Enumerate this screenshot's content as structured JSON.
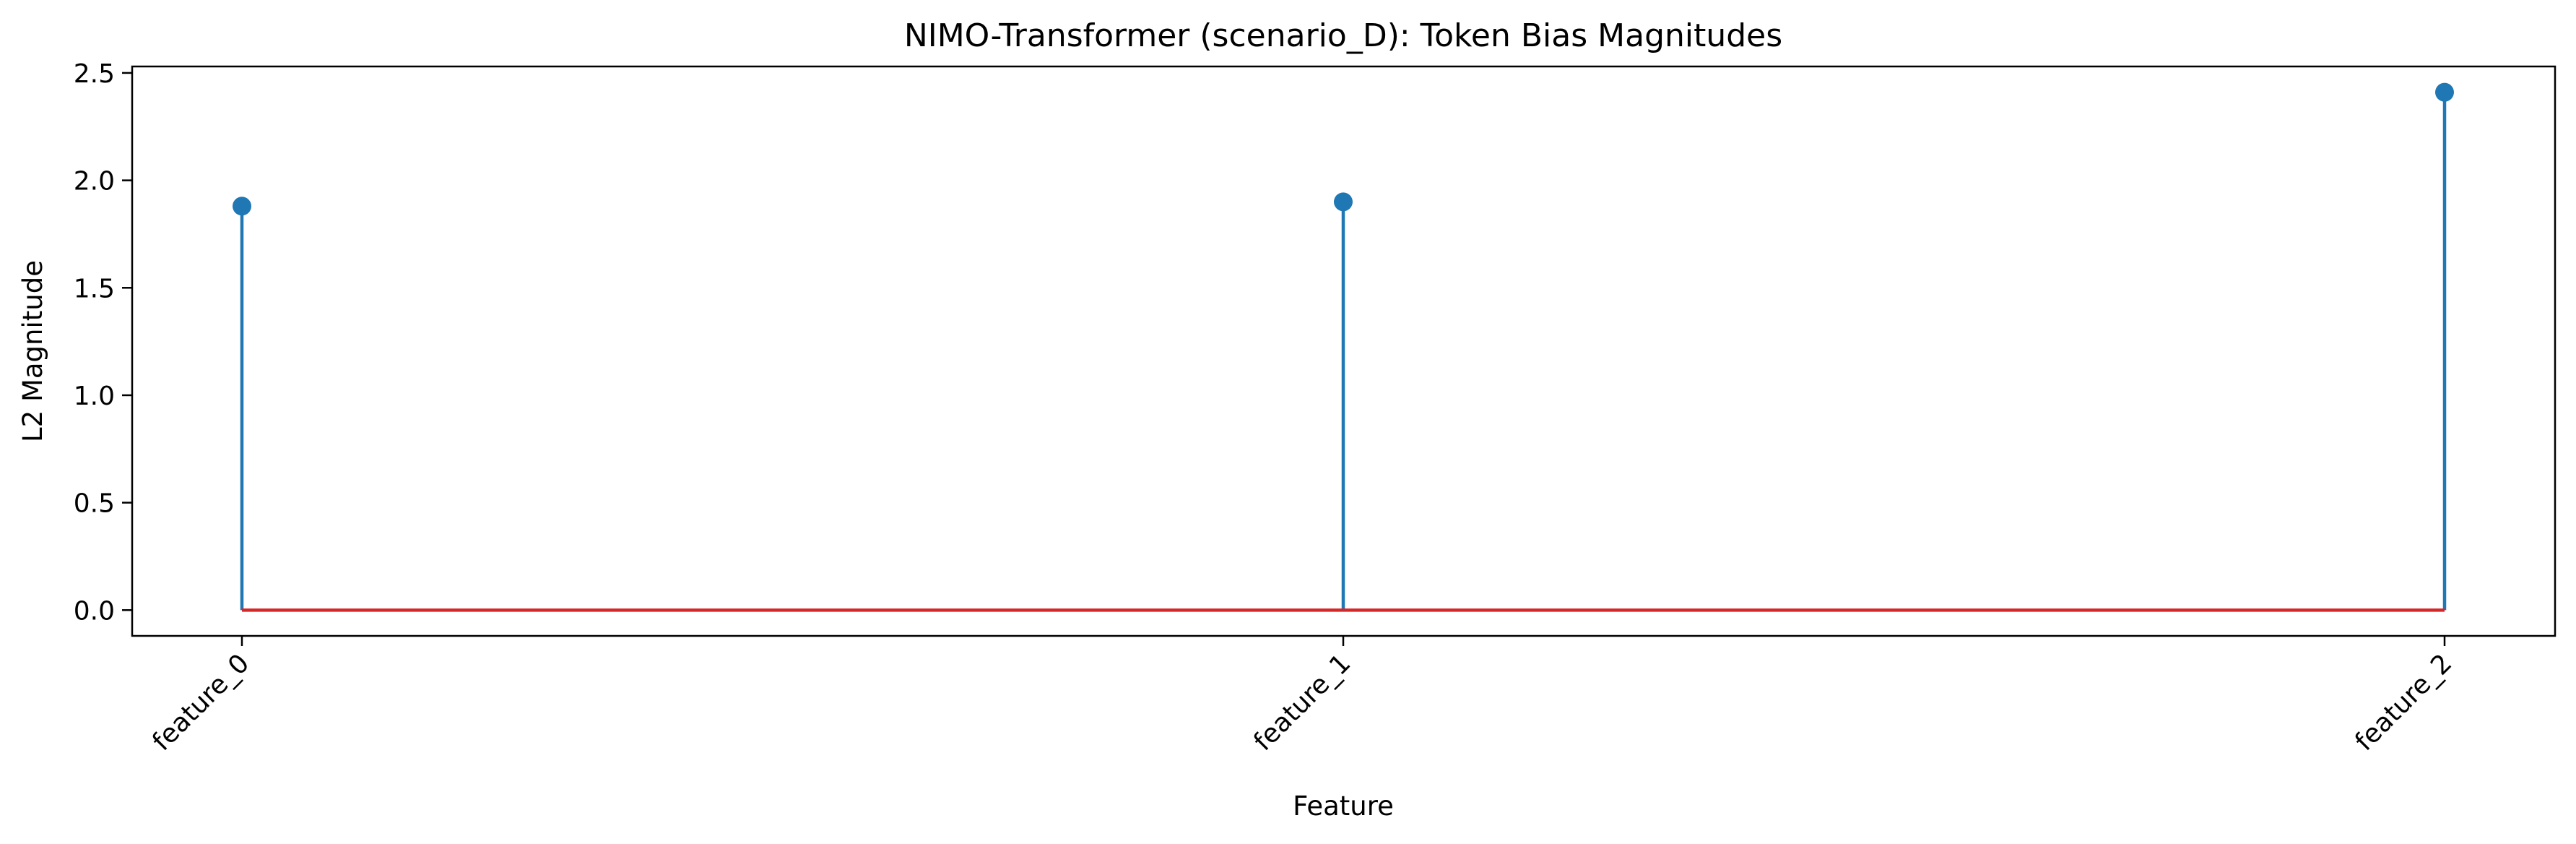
{
  "chart_data": {
    "type": "stem",
    "title": "NIMO-Transformer (scenario_D): Token Bias Magnitudes",
    "xlabel": "Feature",
    "ylabel": "L2 Magnitude",
    "categories": [
      "feature_0",
      "feature_1",
      "feature_2"
    ],
    "values": [
      1.88,
      1.9,
      2.41
    ],
    "baseline": 0.0,
    "ylim": [
      -0.12,
      2.53
    ],
    "yticks": [
      "0.0",
      "0.5",
      "1.0",
      "1.5",
      "2.0",
      "2.5"
    ],
    "xtick_rotation_deg": -45,
    "grid": false,
    "legend": "none",
    "colors": {
      "stem": "#1f77b4",
      "marker": "#1f77b4",
      "baseline": "#d62728",
      "axes": "#000000"
    }
  }
}
